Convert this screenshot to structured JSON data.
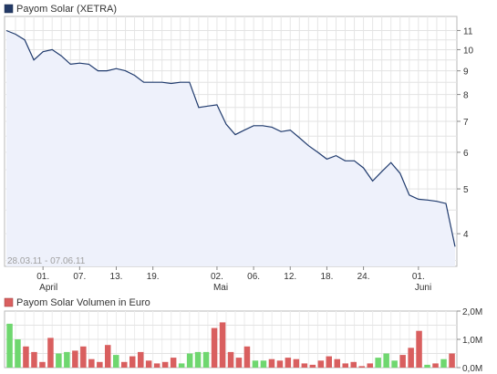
{
  "chart_data": [
    {
      "type": "area",
      "title": "Payom Solar (XETRA)",
      "date_range": "28.03.11 - 07.06.11",
      "y_scale": "log",
      "ylim": [
        3.4,
        11.8
      ],
      "y_ticks": [
        4,
        5,
        6,
        7,
        8,
        9,
        10,
        11
      ],
      "grid": true,
      "x": [
        "2011-03-28",
        "2011-03-29",
        "2011-03-30",
        "2011-03-31",
        "2011-04-01",
        "2011-04-04",
        "2011-04-05",
        "2011-04-06",
        "2011-04-07",
        "2011-04-08",
        "2011-04-11",
        "2011-04-12",
        "2011-04-13",
        "2011-04-14",
        "2011-04-15",
        "2011-04-18",
        "2011-04-19",
        "2011-04-20",
        "2011-04-21",
        "2011-04-26",
        "2011-04-27",
        "2011-04-28",
        "2011-04-29",
        "2011-05-02",
        "2011-05-03",
        "2011-05-04",
        "2011-05-05",
        "2011-05-06",
        "2011-05-09",
        "2011-05-10",
        "2011-05-11",
        "2011-05-12",
        "2011-05-13",
        "2011-05-16",
        "2011-05-17",
        "2011-05-18",
        "2011-05-19",
        "2011-05-20",
        "2011-05-23",
        "2011-05-24",
        "2011-05-25",
        "2011-05-26",
        "2011-05-27",
        "2011-05-30",
        "2011-05-31",
        "2011-06-01",
        "2011-06-02",
        "2011-06-03",
        "2011-06-06",
        "2011-06-07"
      ],
      "values": [
        11.0,
        10.8,
        10.5,
        9.5,
        9.9,
        10.0,
        9.7,
        9.3,
        9.35,
        9.3,
        9.0,
        9.0,
        9.1,
        9.0,
        8.8,
        8.5,
        8.5,
        8.5,
        8.45,
        8.5,
        8.5,
        7.5,
        7.55,
        7.6,
        6.9,
        6.55,
        6.7,
        6.85,
        6.85,
        6.8,
        6.65,
        6.7,
        6.45,
        6.2,
        6.0,
        5.8,
        5.9,
        5.75,
        5.75,
        5.55,
        5.2,
        5.45,
        5.7,
        5.4,
        4.85,
        4.75,
        4.73,
        4.7,
        4.65,
        3.75
      ],
      "x_ticks": [
        {
          "date": "2011-04-01",
          "label": "01.",
          "month": "April"
        },
        {
          "date": "2011-04-07",
          "label": "07.",
          "month": ""
        },
        {
          "date": "2011-04-13",
          "label": "13.",
          "month": ""
        },
        {
          "date": "2011-04-19",
          "label": "19.",
          "month": ""
        },
        {
          "date": "2011-05-02",
          "label": "02.",
          "month": "Mai"
        },
        {
          "date": "2011-05-06",
          "label": "06.",
          "month": ""
        },
        {
          "date": "2011-05-12",
          "label": "12.",
          "month": ""
        },
        {
          "date": "2011-05-18",
          "label": "18.",
          "month": ""
        },
        {
          "date": "2011-05-24",
          "label": "24.",
          "month": ""
        },
        {
          "date": "2011-06-01",
          "label": "01.",
          "month": "Juni"
        }
      ],
      "colors": {
        "line": "#1f3a6d",
        "fill": "#eef1fb",
        "legend": "#233a66"
      }
    },
    {
      "type": "bar",
      "title": "Payom Solar Volumen in Euro",
      "ylim": [
        0,
        2000000
      ],
      "y_ticks": [
        {
          "value": 0,
          "label": "0,0M"
        },
        {
          "value": 1000000,
          "label": "1,0M"
        },
        {
          "value": 2000000,
          "label": "2,0M"
        }
      ],
      "grid": true,
      "values": [
        1.55,
        1.0,
        0.75,
        0.55,
        0.2,
        1.05,
        0.5,
        0.55,
        0.6,
        0.75,
        0.3,
        0.2,
        0.8,
        0.45,
        0.2,
        0.4,
        0.55,
        0.25,
        0.15,
        0.2,
        0.35,
        0.15,
        0.5,
        0.55,
        0.55,
        1.4,
        1.6,
        0.55,
        0.35,
        0.75,
        0.25,
        0.25,
        0.3,
        0.25,
        0.35,
        0.3,
        0.15,
        0.1,
        0.25,
        0.4,
        0.3,
        0.15,
        0.2,
        0.05,
        0.15,
        0.35,
        0.5,
        0.25,
        0.45,
        0.7,
        1.3,
        0.1,
        0.15,
        0.3,
        0.5
      ],
      "value_unit": "M Euro",
      "colors": {
        "up": "#6fd76f",
        "down": "#d95f5f",
        "legend": "#d95f5f"
      },
      "bar_direction": [
        "up",
        "up",
        "down",
        "down",
        "down",
        "down",
        "up",
        "up",
        "down",
        "down",
        "down",
        "down",
        "down",
        "up",
        "down",
        "down",
        "down",
        "down",
        "down",
        "down",
        "down",
        "up",
        "up",
        "up",
        "up",
        "down",
        "down",
        "down",
        "down",
        "down",
        "up",
        "up",
        "down",
        "down",
        "down",
        "down",
        "down",
        "down",
        "down",
        "down",
        "down",
        "down",
        "down",
        "down",
        "down",
        "up",
        "up",
        "up",
        "down",
        "down",
        "down",
        "up",
        "down",
        "up",
        "down"
      ]
    }
  ]
}
